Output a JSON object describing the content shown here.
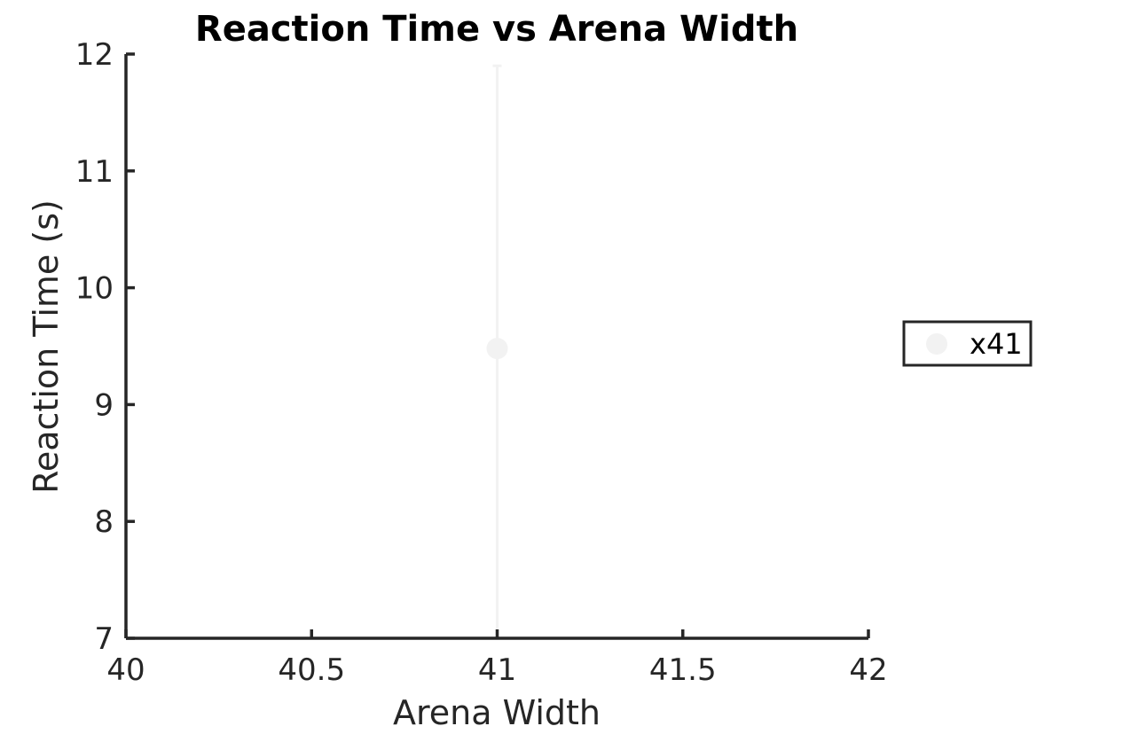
{
  "chart_data": {
    "type": "scatter",
    "title": "Reaction Time vs Arena Width",
    "xlabel": "Arena Width",
    "ylabel": "Reaction Time (s)",
    "xlim": [
      40,
      42
    ],
    "ylim": [
      7,
      12
    ],
    "xticks": [
      40,
      40.5,
      41,
      41.5,
      42
    ],
    "xtick_labels": [
      "40",
      "40.5",
      "41",
      "41.5",
      "42"
    ],
    "yticks": [
      7,
      8,
      9,
      10,
      11,
      12
    ],
    "ytick_labels": [
      "7",
      "8",
      "9",
      "10",
      "11",
      "12"
    ],
    "grid": false,
    "legend": {
      "placement": "right",
      "entries": [
        "x41"
      ]
    },
    "series": [
      {
        "name": "x41",
        "color": "#f2f2f2",
        "points": [
          {
            "x": 41,
            "y": 9.48,
            "err_low": 7,
            "err_high": 11.9
          }
        ]
      }
    ]
  }
}
